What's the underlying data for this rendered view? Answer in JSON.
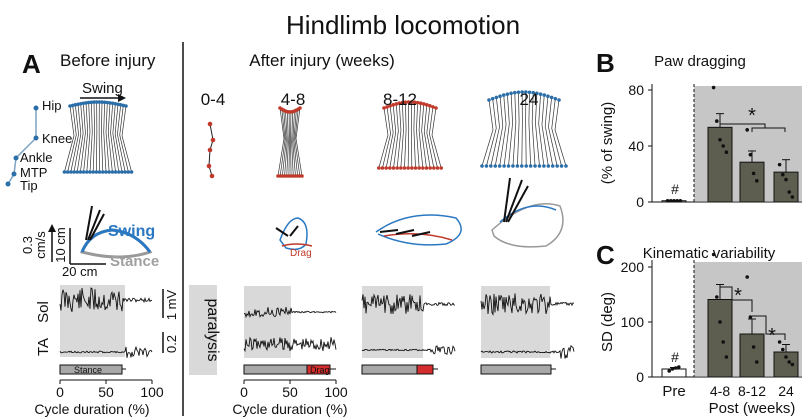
{
  "title": "Hindlimb locomotion",
  "panelA": {
    "letter": "A",
    "before_label": "Before injury",
    "after_label": "After injury (weeks)",
    "swing_arrow_label": "Swing",
    "joints": [
      "Hip",
      "Knee",
      "Ankle",
      "MTP",
      "Tip"
    ],
    "velocity_scale": [
      "0.3",
      "cm/s"
    ],
    "scale_10cm": "10 cm",
    "scale_20cm": "20 cm",
    "swing_word": "Swing",
    "stance_word": "Stance",
    "drag_word": "Drag",
    "periods": [
      "0-4",
      "4-8",
      "8-12",
      "24"
    ],
    "paralysis_label": "paralysis",
    "emg_sol": "Sol",
    "emg_ta": "TA",
    "emg_scale_top": "1 mV",
    "emg_scale_bottom": "0.2",
    "stance_bar_label": "Stance",
    "drag_bar_label": "Drag",
    "xticks": [
      "0",
      "50",
      "100"
    ],
    "xlabel": "Cycle duration (%)"
  },
  "panelB": {
    "letter": "B",
    "title": "Paw dragging",
    "ylabel": "(% of swing)",
    "yticks": [
      "0",
      "40",
      "80"
    ],
    "hash": "#",
    "star": "*"
  },
  "panelC": {
    "letter": "C",
    "title": "Kinematic variability",
    "ylabel": "SD (deg)",
    "yticks": [
      "0",
      "100",
      "200"
    ],
    "hash": "#",
    "stars": [
      "*",
      "*"
    ],
    "xcats": [
      "Pre",
      "4-8",
      "8-12",
      "24"
    ],
    "xlabel": "Post (weeks)"
  },
  "chart_data": [
    {
      "type": "bar",
      "title": "Paw dragging",
      "ylabel": "(% of swing)",
      "categories": [
        "Pre",
        "4-8",
        "8-12",
        "24"
      ],
      "values": [
        1,
        60,
        32,
        24
      ],
      "errors": [
        0,
        11,
        9,
        10
      ],
      "ylim": [
        0,
        90
      ],
      "points": [
        [
          1,
          1,
          1,
          1,
          1
        ],
        [
          92,
          65,
          50,
          45,
          40
        ],
        [
          58,
          38,
          23,
          17
        ],
        [
          30,
          22,
          18,
          8,
          4
        ]
      ]
    },
    {
      "type": "bar",
      "title": "Kinematic variability",
      "ylabel": "SD (deg)",
      "categories": [
        "Pre",
        "4-8",
        "8-12",
        "24"
      ],
      "values": [
        16,
        155,
        86,
        50
      ],
      "errors": [
        3,
        30,
        30,
        15
      ],
      "ylim": [
        0,
        220
      ],
      "points": [
        [
          12,
          16,
          18,
          20
        ],
        [
          245,
          160,
          110,
          70,
          40
        ],
        [
          200,
          120,
          60,
          30
        ],
        [
          70,
          55,
          40,
          30,
          25
        ]
      ]
    }
  ]
}
